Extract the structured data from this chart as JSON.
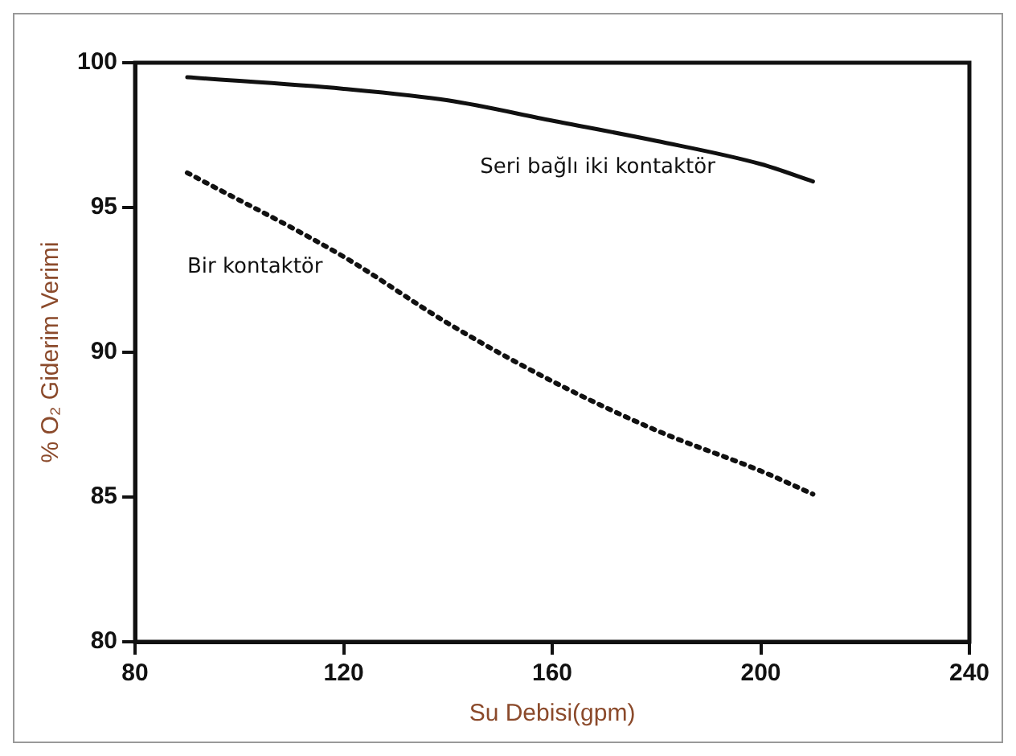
{
  "chart_data": {
    "type": "line",
    "xlabel": "Su Debisi(gpm)",
    "ylabel": "% O₂ Giderim Verimi",
    "xlim": [
      80,
      240
    ],
    "xticks": [
      80,
      120,
      160,
      200,
      240
    ],
    "ylim": [
      80,
      100
    ],
    "yticks": [
      80,
      85,
      90,
      95,
      100
    ],
    "grid": false,
    "legend": false,
    "marker": "none",
    "series": [
      {
        "name": "Seri bağlı iki kontaktör",
        "color": "#111111",
        "line_style": "solid",
        "x": [
          90,
          120,
          140,
          160,
          180,
          200,
          210
        ],
        "values": [
          99.5,
          99.1,
          98.7,
          98.0,
          97.3,
          96.5,
          95.9
        ]
      },
      {
        "name": "Bir kontaktör",
        "color": "#111111",
        "line_style": "dotted",
        "x": [
          90,
          120,
          140,
          160,
          180,
          200,
          210
        ],
        "values": [
          96.2,
          93.3,
          91.0,
          89.0,
          87.3,
          85.9,
          85.1
        ]
      }
    ]
  }
}
